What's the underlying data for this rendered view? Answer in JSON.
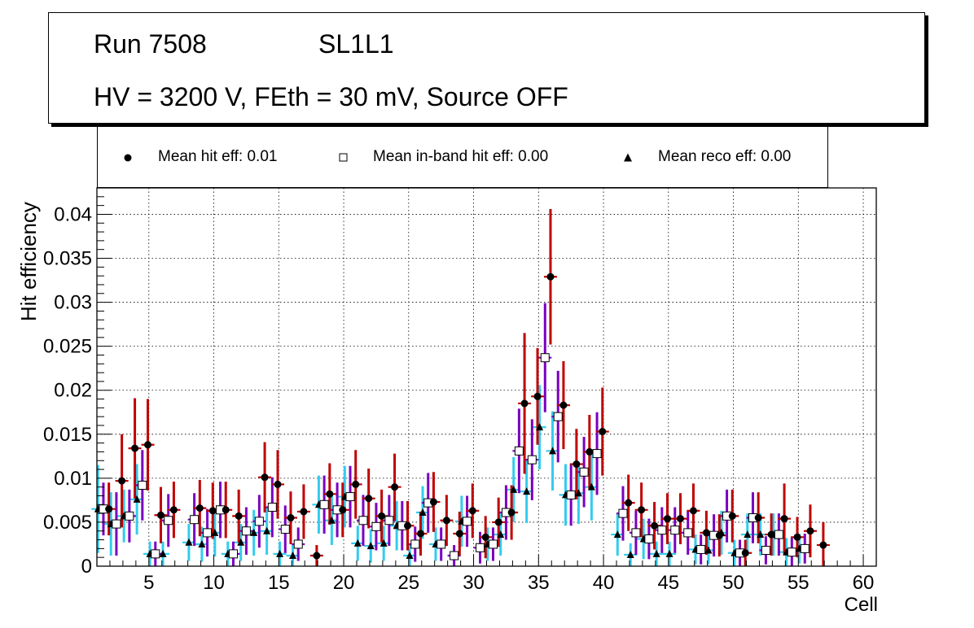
{
  "title_box": {
    "run": "Run 7508",
    "layer": "SL1L1",
    "conditions": "HV = 3200 V, FEth = 30 mV, Source OFF"
  },
  "legend": {
    "hit": "Mean hit  eff: 0.01",
    "inband": "Mean in-band hit eff: 0.00",
    "reco": "Mean reco eff: 0.00"
  },
  "colors": {
    "hit_err": "#c00000",
    "inband_err": "#7a00c0",
    "reco_err": "#33ccee",
    "grid": "#000000"
  },
  "chart_data": {
    "type": "scatter",
    "title": "",
    "xlabel": "Cell",
    "ylabel": "Hit efficiency",
    "xlim": [
      1,
      61
    ],
    "ylim": [
      0,
      0.043
    ],
    "xticks": [
      5,
      10,
      15,
      20,
      25,
      30,
      35,
      40,
      45,
      50,
      55,
      60
    ],
    "yticks": [
      0,
      0.005,
      0.01,
      0.015,
      0.02,
      0.025,
      0.03,
      0.035,
      0.04
    ],
    "ytick_labels": [
      "0",
      "0.005",
      "0.01",
      "0.015",
      "0.02",
      "0.025",
      "0.03",
      "0.035",
      "0.04"
    ],
    "grid": true,
    "series": [
      {
        "name": "Mean hit  eff: 0.01",
        "marker": "filled-circle",
        "points": [
          {
            "x": 2,
            "y": 0.0065,
            "e": 0.003
          },
          {
            "x": 3,
            "y": 0.0097,
            "e": 0.0053
          },
          {
            "x": 4,
            "y": 0.0134,
            "e": 0.0057
          },
          {
            "x": 5,
            "y": 0.0138,
            "e": 0.0052
          },
          {
            "x": 6,
            "y": 0.0058,
            "e": 0.0032
          },
          {
            "x": 7,
            "y": 0.0064,
            "e": 0.0032
          },
          {
            "x": 9,
            "y": 0.0066,
            "e": 0.0032
          },
          {
            "x": 10,
            "y": 0.0063,
            "e": 0.0032
          },
          {
            "x": 11,
            "y": 0.0064,
            "e": 0.0032
          },
          {
            "x": 12,
            "y": 0.0057,
            "e": 0.003
          },
          {
            "x": 14,
            "y": 0.0101,
            "e": 0.004
          },
          {
            "x": 15,
            "y": 0.0093,
            "e": 0.0039
          },
          {
            "x": 16,
            "y": 0.0055,
            "e": 0.003
          },
          {
            "x": 17,
            "y": 0.0062,
            "e": 0.0031
          },
          {
            "x": 18,
            "y": 0.0012,
            "e": 0.0012
          },
          {
            "x": 19,
            "y": 0.0082,
            "e": 0.0035
          },
          {
            "x": 20,
            "y": 0.0064,
            "e": 0.0031
          },
          {
            "x": 21,
            "y": 0.0093,
            "e": 0.0039
          },
          {
            "x": 22,
            "y": 0.0077,
            "e": 0.0034
          },
          {
            "x": 23,
            "y": 0.0057,
            "e": 0.003
          },
          {
            "x": 24,
            "y": 0.009,
            "e": 0.0038
          },
          {
            "x": 25,
            "y": 0.0046,
            "e": 0.0028
          },
          {
            "x": 26,
            "y": 0.0037,
            "e": 0.0025
          },
          {
            "x": 27,
            "y": 0.0073,
            "e": 0.0034
          },
          {
            "x": 28,
            "y": 0.0052,
            "e": 0.0029
          },
          {
            "x": 29,
            "y": 0.0037,
            "e": 0.0025
          },
          {
            "x": 30,
            "y": 0.0063,
            "e": 0.0031
          },
          {
            "x": 31,
            "y": 0.0033,
            "e": 0.0024
          },
          {
            "x": 32,
            "y": 0.005,
            "e": 0.0028
          },
          {
            "x": 33,
            "y": 0.0061,
            "e": 0.0031
          },
          {
            "x": 34,
            "y": 0.0185,
            "e": 0.008
          },
          {
            "x": 35,
            "y": 0.0193,
            "e": 0.0055
          },
          {
            "x": 36,
            "y": 0.0329,
            "e": 0.0077
          },
          {
            "x": 37,
            "y": 0.0183,
            "e": 0.005
          },
          {
            "x": 38,
            "y": 0.0116,
            "e": 0.004
          },
          {
            "x": 39,
            "y": 0.013,
            "e": 0.0042
          },
          {
            "x": 40,
            "y": 0.0153,
            "e": 0.005
          },
          {
            "x": 42,
            "y": 0.0072,
            "e": 0.0032
          },
          {
            "x": 43,
            "y": 0.0064,
            "e": 0.0031
          },
          {
            "x": 44,
            "y": 0.0046,
            "e": 0.0027
          },
          {
            "x": 45,
            "y": 0.0054,
            "e": 0.0029
          },
          {
            "x": 46,
            "y": 0.0054,
            "e": 0.0029
          },
          {
            "x": 47,
            "y": 0.0063,
            "e": 0.0031
          },
          {
            "x": 48,
            "y": 0.0038,
            "e": 0.0025
          },
          {
            "x": 49,
            "y": 0.0035,
            "e": 0.0024
          },
          {
            "x": 50,
            "y": 0.0057,
            "e": 0.003
          },
          {
            "x": 51,
            "y": 0.0015,
            "e": 0.0015
          },
          {
            "x": 52,
            "y": 0.0055,
            "e": 0.0029
          },
          {
            "x": 53,
            "y": 0.0036,
            "e": 0.0024
          },
          {
            "x": 54,
            "y": 0.0054,
            "e": 0.004
          },
          {
            "x": 55,
            "y": 0.0033,
            "e": 0.0023
          },
          {
            "x": 56,
            "y": 0.004,
            "e": 0.003
          },
          {
            "x": 57,
            "y": 0.0024,
            "e": 0.0026
          }
        ]
      },
      {
        "name": "Mean in-band hit eff: 0.00",
        "marker": "open-square",
        "points": [
          {
            "x": 2,
            "y": 0.0065,
            "e": 0.003
          },
          {
            "x": 3,
            "y": 0.0048,
            "e": 0.0036
          },
          {
            "x": 4,
            "y": 0.0057,
            "e": 0.003
          },
          {
            "x": 5,
            "y": 0.0092,
            "e": 0.004
          },
          {
            "x": 6,
            "y": 0.0014,
            "e": 0.0014
          },
          {
            "x": 7,
            "y": 0.0052,
            "e": 0.003
          },
          {
            "x": 9,
            "y": 0.0053,
            "e": 0.003
          },
          {
            "x": 10,
            "y": 0.0038,
            "e": 0.0027
          },
          {
            "x": 11,
            "y": 0.0064,
            "e": 0.0032
          },
          {
            "x": 12,
            "y": 0.0014,
            "e": 0.0014
          },
          {
            "x": 13,
            "y": 0.004,
            "e": 0.0027
          },
          {
            "x": 14,
            "y": 0.0051,
            "e": 0.003
          },
          {
            "x": 15,
            "y": 0.0067,
            "e": 0.0034
          },
          {
            "x": 16,
            "y": 0.0042,
            "e": 0.0027
          },
          {
            "x": 17,
            "y": 0.0025,
            "e": 0.0019
          },
          {
            "x": 19,
            "y": 0.007,
            "e": 0.0033
          },
          {
            "x": 20,
            "y": 0.0064,
            "e": 0.0031
          },
          {
            "x": 21,
            "y": 0.0079,
            "e": 0.0035
          },
          {
            "x": 22,
            "y": 0.0052,
            "e": 0.0029
          },
          {
            "x": 23,
            "y": 0.0045,
            "e": 0.0027
          },
          {
            "x": 24,
            "y": 0.0052,
            "e": 0.0029
          },
          {
            "x": 25,
            "y": 0.0046,
            "e": 0.0028
          },
          {
            "x": 26,
            "y": 0.0025,
            "e": 0.002
          },
          {
            "x": 27,
            "y": 0.0072,
            "e": 0.0034
          },
          {
            "x": 28,
            "y": 0.0025,
            "e": 0.0019
          },
          {
            "x": 29,
            "y": 0.0012,
            "e": 0.0012
          },
          {
            "x": 30,
            "y": 0.0051,
            "e": 0.0029
          },
          {
            "x": 31,
            "y": 0.0021,
            "e": 0.0018
          },
          {
            "x": 32,
            "y": 0.0025,
            "e": 0.0019
          },
          {
            "x": 33,
            "y": 0.0061,
            "e": 0.0031
          },
          {
            "x": 34,
            "y": 0.0131,
            "e": 0.0048
          },
          {
            "x": 35,
            "y": 0.0121,
            "e": 0.0046
          },
          {
            "x": 36,
            "y": 0.0237,
            "e": 0.0062
          },
          {
            "x": 37,
            "y": 0.017,
            "e": 0.0052
          },
          {
            "x": 38,
            "y": 0.0081,
            "e": 0.0035
          },
          {
            "x": 39,
            "y": 0.0107,
            "e": 0.004
          },
          {
            "x": 40,
            "y": 0.0128,
            "e": 0.0047
          },
          {
            "x": 42,
            "y": 0.006,
            "e": 0.0031
          },
          {
            "x": 43,
            "y": 0.0038,
            "e": 0.0025
          },
          {
            "x": 44,
            "y": 0.0031,
            "e": 0.0023
          },
          {
            "x": 45,
            "y": 0.0041,
            "e": 0.0026
          },
          {
            "x": 46,
            "y": 0.0041,
            "e": 0.0026
          },
          {
            "x": 47,
            "y": 0.0038,
            "e": 0.0025
          },
          {
            "x": 48,
            "y": 0.0019,
            "e": 0.0017
          },
          {
            "x": 49,
            "y": 0.0035,
            "e": 0.0024
          },
          {
            "x": 50,
            "y": 0.0057,
            "e": 0.003
          },
          {
            "x": 51,
            "y": 0.0015,
            "e": 0.0015
          },
          {
            "x": 52,
            "y": 0.0055,
            "e": 0.0029
          },
          {
            "x": 53,
            "y": 0.0018,
            "e": 0.0016
          },
          {
            "x": 54,
            "y": 0.0036,
            "e": 0.0024
          },
          {
            "x": 55,
            "y": 0.0016,
            "e": 0.0016
          },
          {
            "x": 56,
            "y": 0.002,
            "e": 0.0017
          }
        ]
      },
      {
        "name": "Mean reco eff: 0.00",
        "marker": "filled-triangle",
        "points": [
          {
            "x": 2,
            "y": 0.0065,
            "e": 0.005
          },
          {
            "x": 3,
            "y": 0.0048,
            "e": 0.0036
          },
          {
            "x": 4,
            "y": 0.0057,
            "e": 0.003
          },
          {
            "x": 5,
            "y": 0.0076,
            "e": 0.004
          },
          {
            "x": 6,
            "y": 0.0014,
            "e": 0.0014
          },
          {
            "x": 7,
            "y": 0.0014,
            "e": 0.0014
          },
          {
            "x": 9,
            "y": 0.0027,
            "e": 0.0021
          },
          {
            "x": 10,
            "y": 0.0025,
            "e": 0.002
          },
          {
            "x": 11,
            "y": 0.0038,
            "e": 0.0027
          },
          {
            "x": 12,
            "y": 0.0014,
            "e": 0.0014
          },
          {
            "x": 13,
            "y": 0.0027,
            "e": 0.0021
          },
          {
            "x": 14,
            "y": 0.0038,
            "e": 0.0026
          },
          {
            "x": 15,
            "y": 0.004,
            "e": 0.0027
          },
          {
            "x": 16,
            "y": 0.0014,
            "e": 0.0014
          },
          {
            "x": 17,
            "y": 0.0012,
            "e": 0.0012
          },
          {
            "x": 19,
            "y": 0.007,
            "e": 0.0033
          },
          {
            "x": 20,
            "y": 0.0052,
            "e": 0.0028
          },
          {
            "x": 21,
            "y": 0.0079,
            "e": 0.0035
          },
          {
            "x": 22,
            "y": 0.0026,
            "e": 0.002
          },
          {
            "x": 23,
            "y": 0.0023,
            "e": 0.0019
          },
          {
            "x": 24,
            "y": 0.0026,
            "e": 0.002
          },
          {
            "x": 25,
            "y": 0.0046,
            "e": 0.0028
          },
          {
            "x": 26,
            "y": 0.0012,
            "e": 0.0012
          },
          {
            "x": 27,
            "y": 0.0061,
            "e": 0.003
          },
          {
            "x": 28,
            "y": 0.0025,
            "e": 0.0019
          },
          {
            "x": 30,
            "y": 0.0051,
            "e": 0.0029
          },
          {
            "x": 32,
            "y": 0.0025,
            "e": 0.0019
          },
          {
            "x": 33,
            "y": 0.0036,
            "e": 0.0024
          },
          {
            "x": 34,
            "y": 0.0087,
            "e": 0.0037
          },
          {
            "x": 35,
            "y": 0.0085,
            "e": 0.0036
          },
          {
            "x": 36,
            "y": 0.0158,
            "e": 0.0048
          },
          {
            "x": 37,
            "y": 0.0131,
            "e": 0.0045
          },
          {
            "x": 38,
            "y": 0.0081,
            "e": 0.0035
          },
          {
            "x": 39,
            "y": 0.0083,
            "e": 0.0035
          },
          {
            "x": 40,
            "y": 0.009,
            "e": 0.0038
          },
          {
            "x": 42,
            "y": 0.0036,
            "e": 0.0024
          },
          {
            "x": 43,
            "y": 0.0013,
            "e": 0.0013
          },
          {
            "x": 44,
            "y": 0.0031,
            "e": 0.0023
          },
          {
            "x": 45,
            "y": 0.0014,
            "e": 0.0014
          },
          {
            "x": 46,
            "y": 0.0014,
            "e": 0.0014
          },
          {
            "x": 48,
            "y": 0.0019,
            "e": 0.0017
          },
          {
            "x": 49,
            "y": 0.0018,
            "e": 0.0016
          },
          {
            "x": 50,
            "y": 0.0038,
            "e": 0.0025
          },
          {
            "x": 51,
            "y": 0.0015,
            "e": 0.0015
          },
          {
            "x": 52,
            "y": 0.0036,
            "e": 0.0024
          },
          {
            "x": 53,
            "y": 0.0036,
            "e": 0.0024
          },
          {
            "x": 54,
            "y": 0.0036,
            "e": 0.0024
          },
          {
            "x": 55,
            "y": 0.0016,
            "e": 0.0016
          },
          {
            "x": 56,
            "y": 0.002,
            "e": 0.0017
          }
        ]
      }
    ]
  }
}
